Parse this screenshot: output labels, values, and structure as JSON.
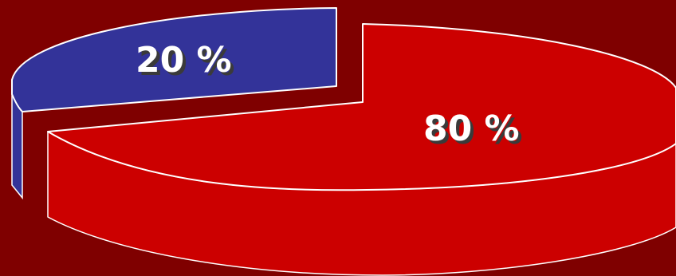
{
  "chart_data": {
    "type": "pie",
    "style": "3d-exploded",
    "slices": [
      {
        "label": "20 %",
        "value": 20,
        "color": "#333399"
      },
      {
        "label": "80 %",
        "value": 80,
        "color": "#cc0000"
      }
    ],
    "background": "#7f0000",
    "outline_color": "#ffffff"
  }
}
